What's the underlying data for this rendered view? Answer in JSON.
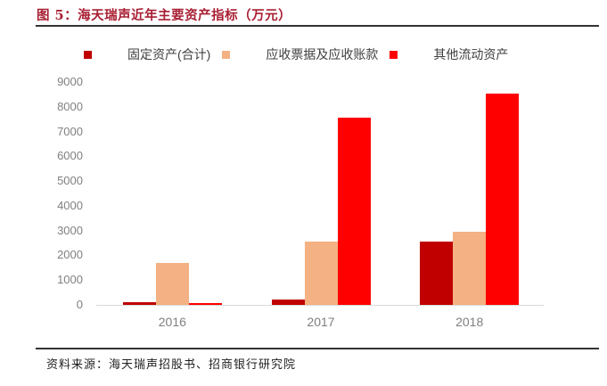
{
  "figure": {
    "title": "图 5：海天瑞声近年主要资产指标（万元）",
    "source_note": "资料来源：海天瑞声招股书、招商银行研究院"
  },
  "colors": {
    "title_red": "#A81E32",
    "rule_dark": "#333333",
    "axis_text": "#808080",
    "x_axis_text": "#7F7F7F",
    "baseline": "#D9D9D9"
  },
  "chart_data": {
    "type": "bar",
    "title": "海天瑞声近年主要资产指标（万元）",
    "categories": [
      "2016",
      "2017",
      "2018"
    ],
    "series": [
      {
        "name": "固定资产(合计)",
        "color": "#C00000",
        "values": [
          120,
          220,
          2550
        ]
      },
      {
        "name": "应收票据及应收账款",
        "color": "#F4B183",
        "values": [
          1700,
          2550,
          2950
        ]
      },
      {
        "name": "其他流动资产",
        "color": "#FF0000",
        "values": [
          90,
          7560,
          8550
        ]
      }
    ],
    "ylim": [
      0,
      9000
    ],
    "ytick_step": 1000,
    "grid": false,
    "legend_position": "top",
    "xlabel": "",
    "ylabel": ""
  }
}
